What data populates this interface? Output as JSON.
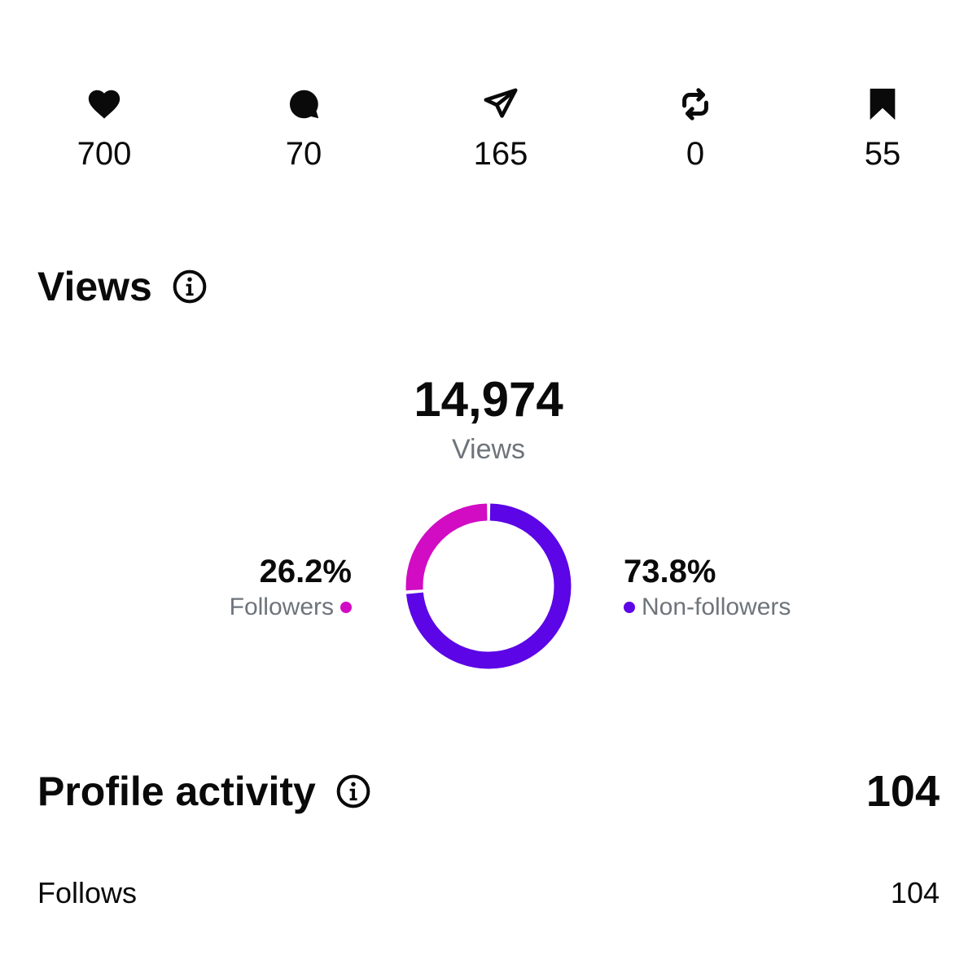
{
  "engagement": {
    "items": [
      {
        "icon": "heart-icon",
        "count": "700"
      },
      {
        "icon": "comment-icon",
        "count": "70"
      },
      {
        "icon": "share-icon",
        "count": "165"
      },
      {
        "icon": "repost-icon",
        "count": "0"
      },
      {
        "icon": "bookmark-icon",
        "count": "55"
      }
    ]
  },
  "views": {
    "title": "Views",
    "total": "14,974",
    "caption": "Views",
    "followers": {
      "pct_label": "26.2%",
      "label": "Followers",
      "color": "#d10cc3"
    },
    "non_followers": {
      "pct_label": "73.8%",
      "label": "Non-followers",
      "color": "#5c05e6"
    }
  },
  "chart_data": {
    "type": "pie",
    "categories": [
      "Followers",
      "Non-followers"
    ],
    "values": [
      26.2,
      73.8
    ],
    "colors": [
      "#d10cc3",
      "#5c05e6"
    ]
  },
  "profile_activity": {
    "title": "Profile activity",
    "total": "104",
    "rows": [
      {
        "label": "Follows",
        "value": "104"
      }
    ]
  }
}
